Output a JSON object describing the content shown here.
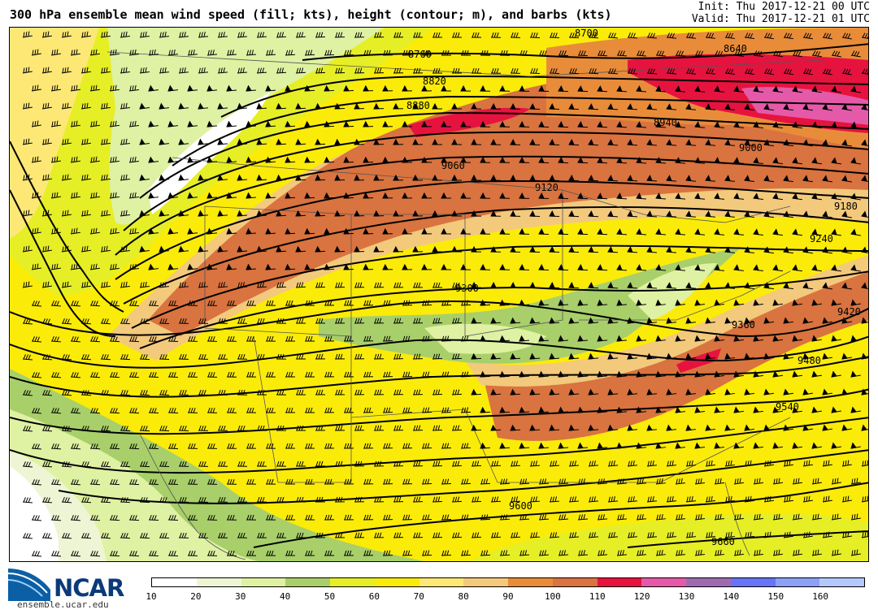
{
  "header": {
    "title": "300 hPa ensemble mean wind speed (fill; kts), height (contour; m), and barbs (kts)",
    "init": "Init: Thu 2017-12-21 00 UTC",
    "valid": "Valid: Thu 2017-12-21 01 UTC"
  },
  "footer": {
    "logo_text": "NCAR",
    "website": "ensemble.ucar.edu"
  },
  "colorbar": {
    "colors": [
      "#ffffff",
      "#eef5d4",
      "#dff1a3",
      "#a8cf6a",
      "#e6ee26",
      "#fbeb09",
      "#fde876",
      "#f3c97c",
      "#e88c3a",
      "#d9733f",
      "#e6133f",
      "#e55aa8",
      "#9f6bb0",
      "#6674f5",
      "#8ca0f6",
      "#b4c8fb"
    ],
    "ticks": [
      "10",
      "20",
      "30",
      "40",
      "50",
      "60",
      "70",
      "80",
      "90",
      "100",
      "110",
      "120",
      "130",
      "140",
      "150",
      "160"
    ]
  },
  "contours": {
    "labels": [
      "8700",
      "8760",
      "8820",
      "8880",
      "8940",
      "9000",
      "9060",
      "9120",
      "9180",
      "9240",
      "9300",
      "9360",
      "9420",
      "9480",
      "9540",
      "9600",
      "9660",
      "8640"
    ]
  }
}
